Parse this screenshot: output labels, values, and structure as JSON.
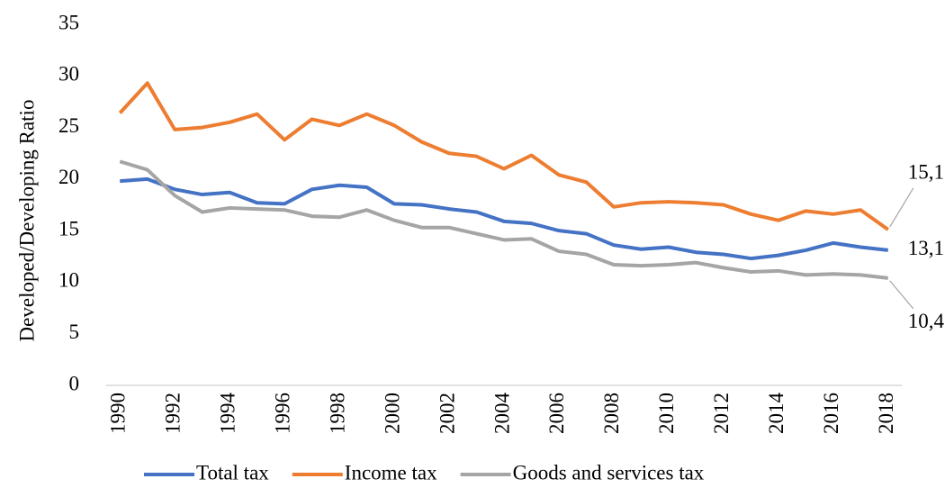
{
  "chart_data": {
    "type": "line",
    "y_label": "Developed/Developing Ratio",
    "categories": [
      "1990",
      null,
      "1992",
      null,
      "1994",
      null,
      "1996",
      null,
      "1998",
      null,
      "2000",
      null,
      "2002",
      null,
      "2004",
      null,
      "2006",
      null,
      "2008",
      null,
      "2010",
      null,
      "2012",
      null,
      "2014",
      null,
      "2016",
      null,
      "2018"
    ],
    "ylim": [
      0,
      35
    ],
    "yticks": [
      0,
      5,
      10,
      15,
      20,
      25,
      30,
      35
    ],
    "grid": false,
    "legend": "bottom",
    "series": [
      {
        "name": "Total tax",
        "color": "#4472c4",
        "values": [
          19.8,
          20.0,
          19.0,
          18.5,
          18.7,
          17.7,
          17.6,
          19.0,
          19.4,
          19.2,
          17.6,
          17.5,
          17.1,
          16.8,
          15.9,
          15.7,
          15.0,
          14.7,
          13.6,
          13.2,
          13.4,
          12.9,
          12.7,
          12.3,
          12.6,
          13.1,
          13.8,
          13.4,
          13.1
        ],
        "value_labels": [
          null,
          null,
          null,
          null,
          null,
          null,
          null,
          null,
          null,
          null,
          null,
          null,
          null,
          null,
          null,
          null,
          null,
          null,
          null,
          null,
          null,
          null,
          null,
          null,
          null,
          null,
          null,
          null,
          "13,1"
        ]
      },
      {
        "name": "Income tax",
        "color": "#ed7d31",
        "values": [
          26.4,
          29.3,
          24.8,
          25.0,
          25.5,
          26.3,
          23.8,
          25.8,
          25.2,
          26.3,
          25.2,
          23.6,
          22.5,
          22.2,
          21.0,
          22.3,
          20.4,
          19.7,
          17.3,
          17.7,
          17.8,
          17.7,
          17.5,
          16.6,
          16.0,
          16.9,
          16.6,
          17.0,
          15.1
        ],
        "value_labels": [
          null,
          null,
          null,
          null,
          null,
          null,
          null,
          null,
          null,
          null,
          null,
          null,
          null,
          null,
          null,
          null,
          null,
          null,
          null,
          null,
          null,
          null,
          null,
          null,
          null,
          null,
          null,
          null,
          "15,1"
        ]
      },
      {
        "name": "Goods and services tax",
        "color": "#a5a5a5",
        "values": [
          21.7,
          20.9,
          18.4,
          16.8,
          17.2,
          17.1,
          17.0,
          16.4,
          16.3,
          17.0,
          16.0,
          15.3,
          15.3,
          14.7,
          14.1,
          14.2,
          13.0,
          12.7,
          11.7,
          11.6,
          11.7,
          11.9,
          11.4,
          11.0,
          11.1,
          10.7,
          10.8,
          10.7,
          10.4
        ],
        "value_labels": [
          null,
          null,
          null,
          null,
          null,
          null,
          null,
          null,
          null,
          null,
          null,
          null,
          null,
          null,
          null,
          null,
          null,
          null,
          null,
          null,
          null,
          null,
          null,
          null,
          null,
          null,
          null,
          null,
          "10,4"
        ]
      }
    ]
  }
}
